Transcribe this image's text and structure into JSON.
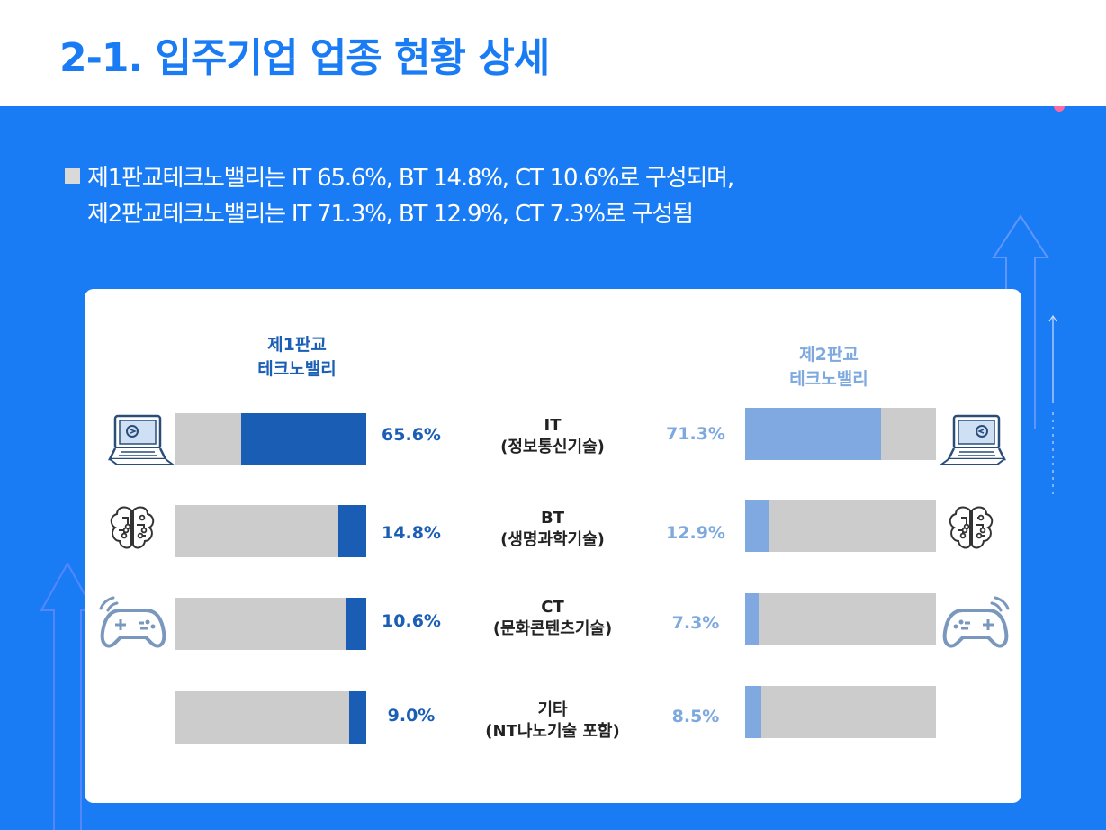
{
  "title": "2-1. 입주기업 업종 현황 상세",
  "summary": {
    "line1": "제1판교테크노밸리는 IT 65.6%, BT 14.8%, CT 10.6%로 구성되며,",
    "line2": "제2판교테크노밸리는 IT 71.3%,  BT 12.9%, CT 7.3%로 구성됨"
  },
  "colors": {
    "background": "#1a7cf5",
    "left_series": "#1a5db5",
    "right_series": "#7fa9e0",
    "bar_track": "#cccccc"
  },
  "icons": [
    "laptop-icon",
    "brain-icon",
    "gamepad-icon"
  ],
  "chart_data": {
    "type": "bar",
    "orientation": "horizontal-butterfly",
    "categories": [
      {
        "line1": "IT",
        "line2": "(정보통신기술)"
      },
      {
        "line1": "BT",
        "line2": "(생명과학기술)"
      },
      {
        "line1": "CT",
        "line2": "(문화콘텐츠기술)"
      },
      {
        "line1": "기타",
        "line2": "(NT나노기술 포함)"
      }
    ],
    "series": [
      {
        "name_line1": "제1판교",
        "name_line2": "테크노밸리",
        "values": [
          65.6,
          14.8,
          10.6,
          9.0
        ],
        "labels": [
          "65.6%",
          "14.8%",
          "10.6%",
          "9.0%"
        ],
        "color": "#1a5db5"
      },
      {
        "name_line1": "제2판교",
        "name_line2": "테크노밸리",
        "values": [
          71.3,
          12.9,
          7.3,
          8.5
        ],
        "labels": [
          "71.3%",
          "12.9%",
          "7.3%",
          "8.5%"
        ],
        "color": "#7fa9e0"
      }
    ],
    "xlim": [
      0,
      100
    ],
    "units": "%"
  }
}
